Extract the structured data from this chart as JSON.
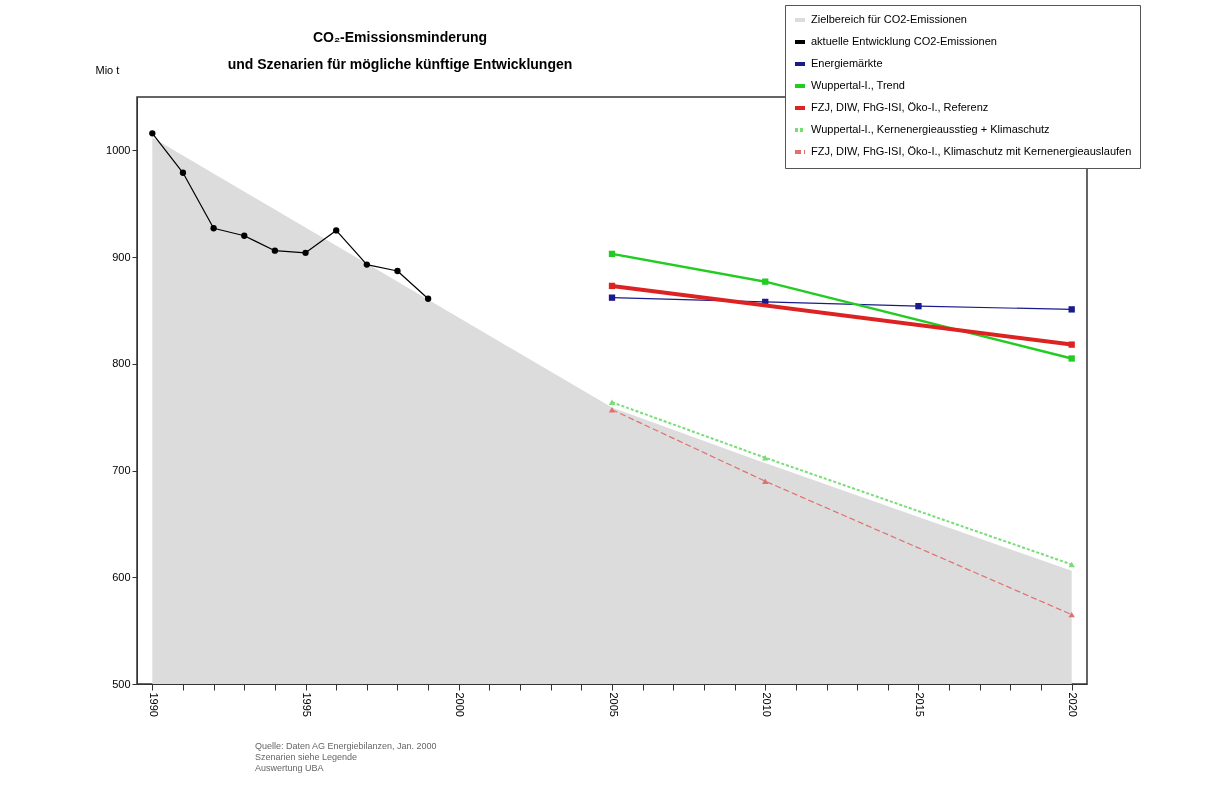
{
  "chart_data": {
    "type": "line",
    "title": "CO₂-Emissionsminderung\nund Szenarien für mögliche künftige Entwicklungen",
    "ylabel": "Mio t",
    "xlim": [
      1989.5,
      2020.5
    ],
    "ylim": [
      500,
      1050
    ],
    "yticks": [
      500,
      600,
      700,
      800,
      900,
      1000
    ],
    "xticks": [
      1990,
      {
        "value": 1991,
        "label": null
      },
      {
        "value": 1992,
        "label": null
      },
      {
        "value": 1993,
        "label": null
      },
      {
        "value": 1994,
        "label": null
      },
      1995,
      {
        "value": 1996,
        "label": null
      },
      {
        "value": 1997,
        "label": null
      },
      {
        "value": 1998,
        "label": null
      },
      {
        "value": 1999,
        "label": null
      },
      2000,
      {
        "value": 2001,
        "label": null
      },
      {
        "value": 2002,
        "label": null
      },
      {
        "value": 2003,
        "label": null
      },
      {
        "value": 2004,
        "label": null
      },
      2005,
      {
        "value": 2006,
        "label": null
      },
      {
        "value": 2007,
        "label": null
      },
      {
        "value": 2008,
        "label": null
      },
      {
        "value": 2009,
        "label": null
      },
      2010,
      {
        "value": 2011,
        "label": null
      },
      {
        "value": 2012,
        "label": null
      },
      {
        "value": 2013,
        "label": null
      },
      {
        "value": 2014,
        "label": null
      },
      2015,
      {
        "value": 2016,
        "label": null
      },
      {
        "value": 2017,
        "label": null
      },
      {
        "value": 2018,
        "label": null
      },
      {
        "value": 2019,
        "label": null
      },
      2020
    ],
    "grid": false,
    "legend": "top right",
    "series": [
      {
        "name": "Zielbereich für CO2-Emissionen",
        "type": "area",
        "color": "#dcdcdc",
        "x": [
          1990,
          2005,
          2010,
          2020
        ],
        "values": [
          1012,
          759,
          707,
          606
        ]
      },
      {
        "name": "aktuelle Entwicklung CO2-Emissionen",
        "color": "#000000",
        "marker": "circle",
        "x": [
          1990,
          1991,
          1992,
          1993,
          1994,
          1995,
          1996,
          1997,
          1998,
          1999
        ],
        "values": [
          1016,
          979,
          927,
          920,
          906,
          904,
          925,
          893,
          887,
          861
        ]
      },
      {
        "name": "Energiemärkte",
        "color": "#1a1a8c",
        "marker": "square",
        "x": [
          2005,
          2010,
          2015,
          2020
        ],
        "values": [
          862,
          858,
          854,
          851
        ]
      },
      {
        "name": "Wuppertal-I., Trend",
        "color": "#22cc22",
        "marker": "square",
        "x": [
          2005,
          2010,
          2020
        ],
        "values": [
          903,
          877,
          805
        ]
      },
      {
        "name": "FZJ, DIW, FhG-ISI, Öko-I., Referenz",
        "color": "#dd2222",
        "marker": "square",
        "x": [
          2005,
          2020
        ],
        "values": [
          873,
          818
        ]
      },
      {
        "name": "Wuppertal-I., Kernenergieausstieg + Klimaschutz",
        "color": "#77dd77",
        "marker": "triangle",
        "line_style": "dotted",
        "x": [
          2005,
          2010,
          2020
        ],
        "values": [
          764,
          712,
          612
        ]
      },
      {
        "name": "FZJ, DIW, FhG-ISI, Öko-I., Klimaschutz mit Kernenergieauslaufen",
        "color": "#e07070",
        "marker": "triangle",
        "line_style": "dashed",
        "x": [
          2005,
          2010,
          2020
        ],
        "values": [
          757,
          690,
          565
        ]
      }
    ],
    "annotations": [
      "Quelle:  Daten AG Energiebilanzen, Jan. 2000\nSzenarien siehe Legende\nAuswertung UBA"
    ]
  }
}
